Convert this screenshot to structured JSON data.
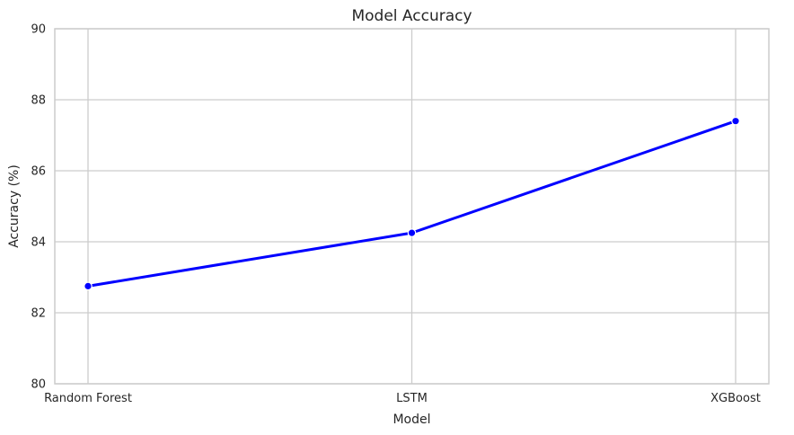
{
  "chart_data": {
    "type": "line",
    "title": "Model Accuracy",
    "xlabel": "Model",
    "ylabel": "Accuracy (%)",
    "categories": [
      "Random Forest",
      "LSTM",
      "XGBoost"
    ],
    "series": [
      {
        "values": [
          82.75,
          84.25,
          87.4
        ],
        "color": "#0000ff",
        "marker": "circle"
      }
    ],
    "ylim": [
      80,
      90
    ],
    "yticks": [
      "80",
      "82",
      "84",
      "86",
      "88",
      "90"
    ],
    "grid": true,
    "colors": {
      "grid": "#cccccc",
      "frame": "#cccccc",
      "text": "#262626"
    }
  }
}
